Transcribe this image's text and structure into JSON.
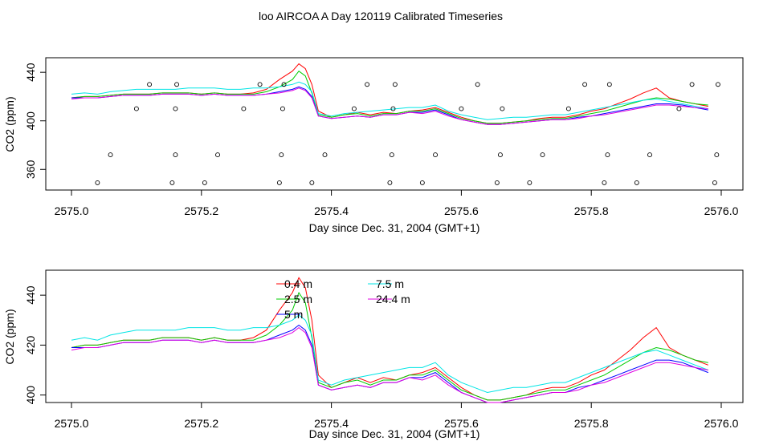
{
  "title": "loo AIRCOA A  Day 120119  Calibrated Timeseries",
  "colors": {
    "s04": "#ff0000",
    "s25": "#00cc00",
    "s5": "#0000ff",
    "s75": "#00e5e5",
    "s244": "#e000e0"
  },
  "chart_data": [
    {
      "type": "line",
      "xlabel": "Day since Dec. 31, 2004 (GMT+1)",
      "ylabel": "CO2 (ppm)",
      "xlim": [
        2575.0,
        2576.0
      ],
      "ylim": [
        343,
        452
      ],
      "xticks": [
        "2575.0",
        "2575.2",
        "2575.4",
        "2575.6",
        "2575.8",
        "2576.0"
      ],
      "yticks": [
        "360",
        "400",
        "440"
      ],
      "x": [
        2575.0,
        2575.02,
        2575.04,
        2575.06,
        2575.08,
        2575.1,
        2575.12,
        2575.14,
        2575.16,
        2575.18,
        2575.2,
        2575.22,
        2575.24,
        2575.26,
        2575.28,
        2575.3,
        2575.32,
        2575.34,
        2575.35,
        2575.36,
        2575.37,
        2575.38,
        2575.4,
        2575.42,
        2575.44,
        2575.46,
        2575.48,
        2575.5,
        2575.52,
        2575.54,
        2575.56,
        2575.58,
        2575.6,
        2575.62,
        2575.64,
        2575.66,
        2575.68,
        2575.7,
        2575.72,
        2575.74,
        2575.76,
        2575.78,
        2575.8,
        2575.82,
        2575.84,
        2575.86,
        2575.88,
        2575.9,
        2575.92,
        2575.94,
        2575.96,
        2575.98
      ],
      "series": [
        {
          "key": "s04",
          "values": [
            419,
            420,
            420,
            421,
            422,
            422,
            422,
            423,
            423,
            423,
            422,
            423,
            422,
            422,
            423,
            426,
            434,
            441,
            447,
            443,
            430,
            408,
            403,
            405,
            407,
            405,
            407,
            406,
            408,
            409,
            411,
            407,
            403,
            400,
            398,
            398,
            399,
            400,
            402,
            403,
            403,
            405,
            408,
            410,
            414,
            418,
            423,
            427,
            419,
            416,
            414,
            412
          ]
        },
        {
          "key": "s25",
          "values": [
            419,
            420,
            420,
            421,
            422,
            422,
            422,
            423,
            423,
            423,
            422,
            423,
            422,
            422,
            422,
            424,
            428,
            434,
            441,
            437,
            423,
            405,
            403,
            405,
            406,
            404,
            406,
            406,
            408,
            408,
            410,
            406,
            402,
            400,
            398,
            398,
            399,
            400,
            401,
            402,
            402,
            404,
            406,
            408,
            411,
            414,
            417,
            419,
            418,
            416,
            414,
            413
          ]
        },
        {
          "key": "s5",
          "values": [
            419,
            419,
            419,
            420,
            421,
            421,
            421,
            422,
            422,
            422,
            421,
            422,
            421,
            421,
            421,
            422,
            424,
            426,
            428,
            426,
            420,
            404,
            402,
            403,
            404,
            403,
            405,
            405,
            407,
            407,
            409,
            405,
            401,
            399,
            397,
            397,
            398,
            399,
            400,
            401,
            401,
            403,
            404,
            406,
            408,
            410,
            412,
            414,
            414,
            413,
            411,
            409
          ]
        },
        {
          "key": "s75",
          "values": [
            422,
            423,
            422,
            424,
            425,
            426,
            426,
            426,
            426,
            427,
            427,
            427,
            426,
            426,
            427,
            427,
            428,
            430,
            432,
            430,
            424,
            406,
            404,
            406,
            407,
            408,
            409,
            410,
            411,
            411,
            413,
            408,
            405,
            403,
            401,
            402,
            403,
            403,
            404,
            405,
            405,
            407,
            409,
            411,
            413,
            415,
            417,
            418,
            416,
            414,
            412,
            410
          ]
        },
        {
          "key": "s244",
          "values": [
            418,
            419,
            419,
            420,
            421,
            421,
            421,
            422,
            422,
            422,
            421,
            422,
            421,
            421,
            421,
            422,
            423,
            425,
            427,
            425,
            419,
            404,
            402,
            403,
            404,
            403,
            405,
            405,
            407,
            406,
            408,
            404,
            401,
            399,
            397,
            397,
            398,
            399,
            400,
            401,
            401,
            402,
            404,
            405,
            407,
            409,
            411,
            413,
            413,
            412,
            411,
            410
          ]
        }
      ],
      "points": {
        "x": [
          2575.04,
          2575.06,
          2575.1,
          2575.12,
          2575.155,
          2575.16,
          2575.16,
          2575.162,
          2575.205,
          2575.225,
          2575.265,
          2575.29,
          2575.32,
          2575.323,
          2575.325,
          2575.327,
          2575.37,
          2575.39,
          2575.435,
          2575.455,
          2575.49,
          2575.493,
          2575.495,
          2575.498,
          2575.54,
          2575.56,
          2575.6,
          2575.625,
          2575.655,
          2575.66,
          2575.663,
          2575.705,
          2575.725,
          2575.765,
          2575.79,
          2575.82,
          2575.825,
          2575.828,
          2575.87,
          2575.89,
          2575.935,
          2575.955,
          2575.99,
          2575.993,
          2575.995
        ],
        "y": [
          349,
          372,
          410,
          430,
          349,
          372,
          410,
          430,
          349,
          372,
          410,
          430,
          349,
          372,
          410,
          430,
          349,
          372,
          410,
          430,
          349,
          372,
          410,
          430,
          349,
          372,
          410,
          430,
          349,
          372,
          410,
          349,
          372,
          410,
          430,
          349,
          372,
          430,
          349,
          372,
          410,
          430,
          349,
          372,
          430
        ]
      }
    },
    {
      "type": "line",
      "xlabel": "Day since Dec. 31, 2004 (GMT+1)",
      "ylabel": "CO2 (ppm)",
      "xlim": [
        2575.0,
        2576.0
      ],
      "ylim": [
        397,
        450
      ],
      "xticks": [
        "2575.0",
        "2575.2",
        "2575.4",
        "2575.6",
        "2575.8",
        "2576.0"
      ],
      "yticks": [
        "400",
        "420",
        "440"
      ],
      "legend": [
        {
          "key": "s04",
          "label": "0.4 m"
        },
        {
          "key": "s25",
          "label": "2.5 m"
        },
        {
          "key": "s5",
          "label": "5 m"
        },
        {
          "key": "s75",
          "label": "7.5 m"
        },
        {
          "key": "s244",
          "label": "24.4 m"
        }
      ]
    }
  ]
}
